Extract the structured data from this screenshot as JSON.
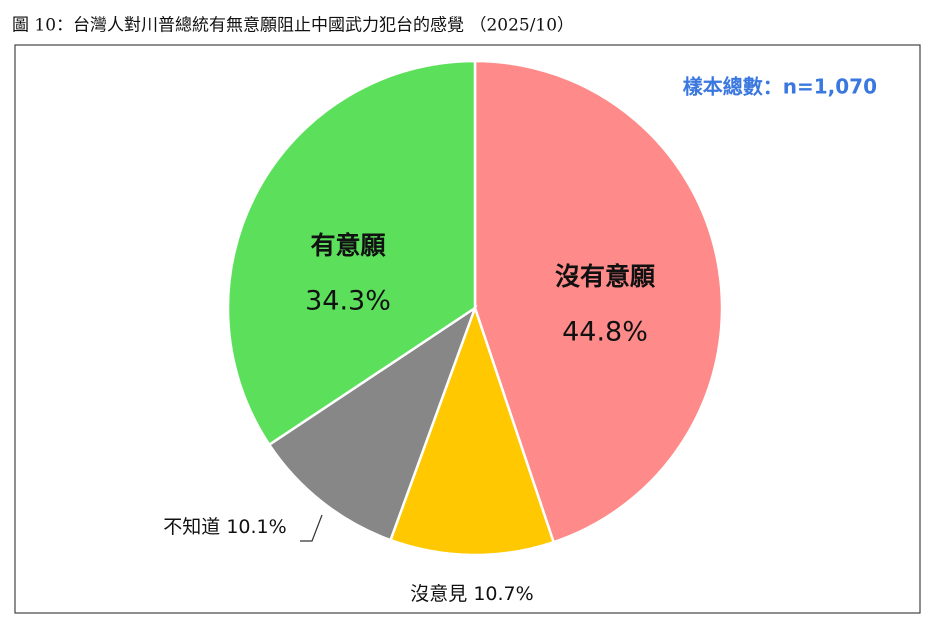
{
  "chart_data": {
    "type": "pie",
    "title": "圖 10：台灣人對川普總統有無意願阻止中國武力犯台的感覺 （2025/10）",
    "annotation": "樣本總數：n=1,070",
    "categories": [
      "沒有意願",
      "沒意見",
      "不知道",
      "有意願"
    ],
    "values": [
      44.8,
      10.7,
      10.1,
      34.3
    ],
    "value_labels": [
      "44.8%",
      "10.7%",
      "10.1%",
      "34.3%"
    ],
    "colors": [
      "#ff8a8a",
      "#ffc800",
      "#878787",
      "#5ce05c"
    ]
  }
}
